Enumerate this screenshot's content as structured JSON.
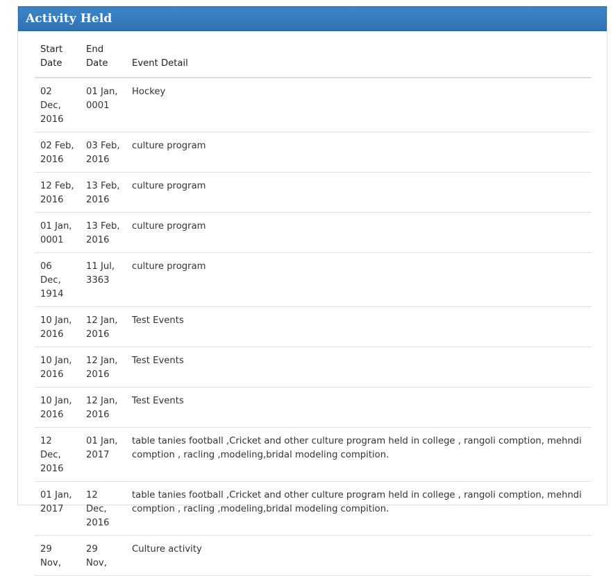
{
  "panel": {
    "title": "Activity Held"
  },
  "table": {
    "headers": {
      "start_line1": "Start",
      "start_line2": "Date",
      "end_line1": "End",
      "end_line2": "Date",
      "detail": "Event Detail"
    },
    "rows": [
      {
        "start1": "02 Dec,",
        "start2": "2016",
        "end1": "01 Jan,",
        "end2": "0001",
        "detail": "Hockey"
      },
      {
        "start1": "02 Feb,",
        "start2": "2016",
        "end1": "03 Feb,",
        "end2": "2016",
        "detail": "culture program"
      },
      {
        "start1": "12 Feb,",
        "start2": "2016",
        "end1": "13 Feb,",
        "end2": "2016",
        "detail": "culture program"
      },
      {
        "start1": "01 Jan,",
        "start2": "0001",
        "end1": "13 Feb,",
        "end2": "2016",
        "detail": "culture program"
      },
      {
        "start1": "06 Dec,",
        "start2": "1914",
        "end1": "11 Jul,",
        "end2": "3363",
        "detail": "culture program"
      },
      {
        "start1": "10 Jan,",
        "start2": "2016",
        "end1": "12 Jan,",
        "end2": "2016",
        "detail": "Test Events"
      },
      {
        "start1": "10 Jan,",
        "start2": "2016",
        "end1": "12 Jan,",
        "end2": "2016",
        "detail": "Test Events"
      },
      {
        "start1": "10 Jan,",
        "start2": "2016",
        "end1": "12 Jan,",
        "end2": "2016",
        "detail": "Test Events"
      },
      {
        "start1": "12 Dec,",
        "start2": "2016",
        "end1": "01 Jan,",
        "end2": "2017",
        "detail": "table tanies football ,Cricket and other culture program held in college , rangoli comption, mehndi comption , racling ,modeling,bridal modeling compition."
      },
      {
        "start1": "01 Jan,",
        "start2": "2017",
        "end1": "12 Dec,",
        "end2": "2016",
        "detail": "table tanies football ,Cricket and other culture program held in college , rangoli comption, mehndi comption , racling ,modeling,bridal modeling compition."
      },
      {
        "start1": "29 Nov,",
        "start2": "",
        "end1": "29 Nov,",
        "end2": "",
        "detail": "Culture activity"
      }
    ]
  }
}
